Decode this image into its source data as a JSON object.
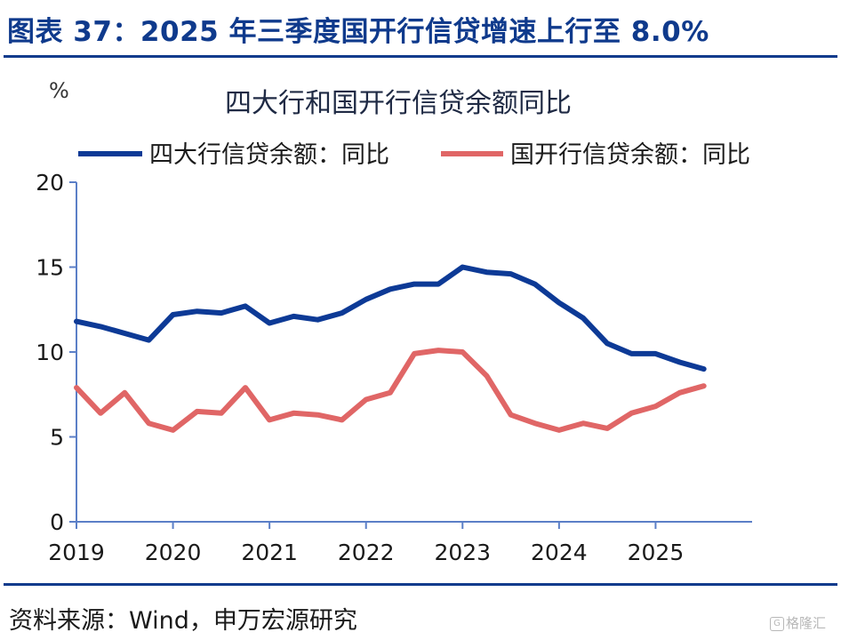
{
  "header": {
    "title": "图表 37：2025 年三季度国开行信贷增速上行至 8.0%"
  },
  "footer": {
    "source": "资料来源：Wind，申万宏源研究"
  },
  "watermark": {
    "icon": "G",
    "text": "格隆汇"
  },
  "colors": {
    "brand": "#0f3a8c",
    "series1": "#0d3a96",
    "series2": "#e06666",
    "axis": "#5b7fc7"
  },
  "chart_data": {
    "type": "line",
    "title": "四大行和国开行信贷余额同比",
    "unit_label": "%",
    "x_ticks": [
      "2019",
      "2020",
      "2021",
      "2022",
      "2023",
      "2024",
      "2025"
    ],
    "y_ticks": [
      "0",
      "5",
      "10",
      "15",
      "20"
    ],
    "ylim": [
      0,
      20
    ],
    "xlim": [
      "2019-Q1",
      "2025-Q4"
    ],
    "x": [
      "2019-Q1",
      "2019-Q2",
      "2019-Q3",
      "2019-Q4",
      "2020-Q1",
      "2020-Q2",
      "2020-Q3",
      "2020-Q4",
      "2021-Q1",
      "2021-Q2",
      "2021-Q3",
      "2021-Q4",
      "2022-Q1",
      "2022-Q2",
      "2022-Q3",
      "2022-Q4",
      "2023-Q1",
      "2023-Q2",
      "2023-Q3",
      "2023-Q4",
      "2024-Q1",
      "2024-Q2",
      "2024-Q3",
      "2024-Q4",
      "2025-Q1",
      "2025-Q2",
      "2025-Q3"
    ],
    "legend_position": "top",
    "grid": false,
    "series": [
      {
        "name": "四大行信贷余额：同比",
        "values": [
          11.8,
          11.5,
          11.1,
          10.7,
          12.2,
          12.4,
          12.3,
          12.7,
          11.7,
          12.1,
          11.9,
          12.3,
          13.1,
          13.7,
          14.0,
          14.0,
          15.0,
          14.7,
          14.6,
          14.0,
          12.9,
          12.0,
          10.5,
          9.9,
          9.9,
          9.4,
          9.0
        ]
      },
      {
        "name": "国开行信贷余额：同比",
        "values": [
          7.9,
          6.4,
          7.6,
          5.8,
          5.4,
          6.5,
          6.4,
          7.9,
          6.0,
          6.4,
          6.3,
          6.0,
          7.2,
          7.6,
          9.9,
          10.1,
          10.0,
          8.6,
          6.3,
          5.8,
          5.4,
          5.8,
          5.5,
          6.4,
          6.8,
          7.6,
          8.0
        ]
      }
    ]
  }
}
